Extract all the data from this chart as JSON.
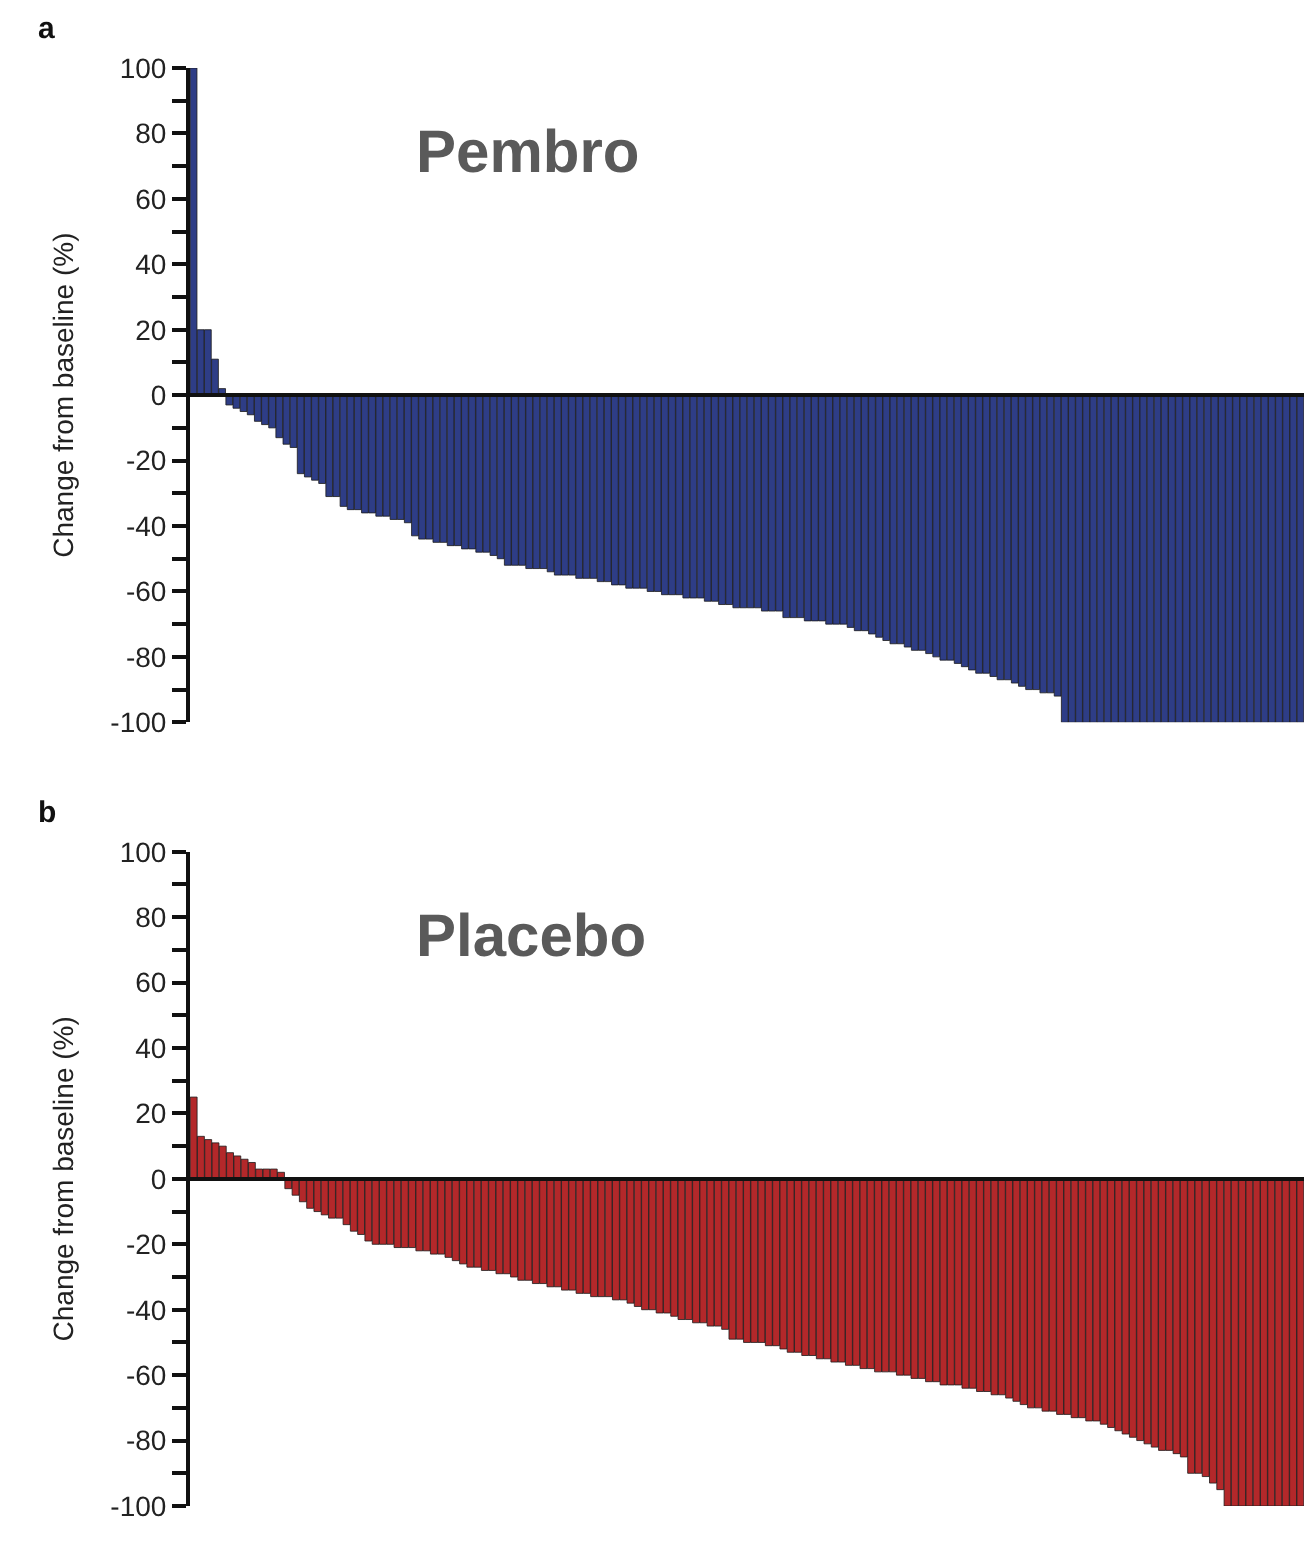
{
  "chart_data": [
    {
      "type": "bar",
      "title": "Pembro",
      "ylabel": "Change from baseline (%)",
      "annotations": [
        "a"
      ],
      "tick_labels": "y",
      "categories": [
        null,
        null,
        null,
        null,
        null,
        null,
        null,
        null,
        null,
        null,
        null,
        null,
        null,
        null,
        null,
        null,
        null,
        null,
        null,
        null,
        null,
        null,
        null,
        null,
        null,
        null,
        null,
        null,
        null,
        null,
        null,
        null,
        null,
        null,
        null,
        null,
        null,
        null,
        null,
        null,
        null,
        null,
        null,
        null,
        null,
        null,
        null,
        null,
        null,
        null,
        null,
        null,
        null,
        null,
        null,
        null,
        null,
        null,
        null,
        null,
        null,
        null,
        null,
        null,
        null,
        null,
        null,
        null,
        null,
        null,
        null,
        null,
        null,
        null,
        null,
        null,
        null,
        null,
        null,
        null,
        null,
        null,
        null,
        null,
        null,
        null,
        null,
        null,
        null,
        null,
        null,
        null,
        null,
        null,
        null,
        null,
        null,
        null,
        null,
        null,
        null,
        null,
        null,
        null,
        null,
        null,
        null,
        null,
        null,
        null,
        null,
        null,
        null,
        null,
        null,
        null,
        null,
        null,
        null,
        null,
        null,
        null,
        null,
        null,
        null,
        null,
        null,
        null,
        null,
        null,
        null,
        null,
        null,
        null,
        null,
        null,
        null,
        null,
        null,
        null,
        null,
        null,
        null,
        null,
        null,
        null,
        null,
        null,
        null,
        null,
        null,
        null,
        null,
        null,
        null,
        null
      ],
      "series": [
        {
          "color": "#2e3d86",
          "values": [
            100,
            20,
            20,
            11,
            2,
            -3,
            -4,
            -5,
            -6,
            -8,
            -9,
            -10,
            -13,
            -15,
            -16,
            -24,
            -25,
            -26,
            -27,
            -31,
            -31,
            -34,
            -35,
            -35,
            -36,
            -36,
            -37,
            -37,
            -38,
            -38,
            -39,
            -43,
            -44,
            -44,
            -45,
            -45,
            -46,
            -46,
            -47,
            -47,
            -48,
            -48,
            -49,
            -50,
            -52,
            -52,
            -52,
            -53,
            -53,
            -53,
            -54,
            -55,
            -55,
            -55,
            -56,
            -56,
            -56,
            -57,
            -57,
            -58,
            -58,
            -59,
            -59,
            -59,
            -60,
            -60,
            -61,
            -61,
            -61,
            -62,
            -62,
            -62,
            -63,
            -63,
            -64,
            -64,
            -65,
            -65,
            -65,
            -65,
            -66,
            -66,
            -66,
            -68,
            -68,
            -68,
            -69,
            -69,
            -69,
            -70,
            -70,
            -70,
            -71,
            -72,
            -72,
            -73,
            -74,
            -75,
            -76,
            -76,
            -77,
            -78,
            -78,
            -79,
            -80,
            -81,
            -81,
            -82,
            -83,
            -84,
            -85,
            -85,
            -86,
            -87,
            -87,
            -88,
            -89,
            -90,
            -90,
            -91,
            -91,
            -92,
            -100,
            -100,
            -100,
            -100,
            -100,
            -100,
            -100,
            -100,
            -100,
            -100,
            -100,
            -100,
            -100,
            -100,
            -100,
            -100,
            -100,
            -100,
            -100,
            -100,
            -100,
            -100,
            -100,
            -100,
            -100,
            -100,
            -100,
            -100,
            -100,
            -100,
            -100,
            -100,
            -100,
            -100
          ]
        }
      ],
      "ylim": [
        -100,
        100
      ],
      "yticks": [
        -100,
        {
          "value": -90,
          "label": null
        },
        -80,
        {
          "value": -70,
          "label": null
        },
        -60,
        {
          "value": -50,
          "label": null
        },
        -40,
        {
          "value": -30,
          "label": null
        },
        -20,
        {
          "value": -10,
          "label": null
        },
        0,
        {
          "value": 10,
          "label": null
        },
        20,
        {
          "value": 30,
          "label": null
        },
        40,
        {
          "value": 50,
          "label": null
        },
        60,
        {
          "value": 70,
          "label": null
        },
        80,
        {
          "value": 90,
          "label": null
        },
        100
      ]
    },
    {
      "type": "bar",
      "title": "Placebo",
      "ylabel": "Change from baseline (%)",
      "annotations": [
        "b"
      ],
      "tick_labels": "y",
      "categories": [
        null,
        null,
        null,
        null,
        null,
        null,
        null,
        null,
        null,
        null,
        null,
        null,
        null,
        null,
        null,
        null,
        null,
        null,
        null,
        null,
        null,
        null,
        null,
        null,
        null,
        null,
        null,
        null,
        null,
        null,
        null,
        null,
        null,
        null,
        null,
        null,
        null,
        null,
        null,
        null,
        null,
        null,
        null,
        null,
        null,
        null,
        null,
        null,
        null,
        null,
        null,
        null,
        null,
        null,
        null,
        null,
        null,
        null,
        null,
        null,
        null,
        null,
        null,
        null,
        null,
        null,
        null,
        null,
        null,
        null,
        null,
        null,
        null,
        null,
        null,
        null,
        null,
        null,
        null,
        null,
        null,
        null,
        null,
        null,
        null,
        null,
        null,
        null,
        null,
        null,
        null,
        null,
        null,
        null,
        null,
        null,
        null,
        null,
        null,
        null,
        null,
        null,
        null,
        null,
        null,
        null,
        null,
        null,
        null,
        null,
        null,
        null,
        null,
        null,
        null,
        null,
        null,
        null,
        null,
        null,
        null,
        null,
        null,
        null,
        null,
        null,
        null,
        null,
        null,
        null,
        null,
        null,
        null,
        null,
        null,
        null,
        null,
        null,
        null,
        null,
        null,
        null,
        null,
        null,
        null,
        null,
        null,
        null,
        null,
        null,
        null,
        null,
        null
      ],
      "series": [
        {
          "color": "#b3282a",
          "values": [
            25,
            13,
            12,
            11,
            10,
            8,
            7,
            6,
            5,
            3,
            3,
            3,
            2,
            -3,
            -5,
            -7,
            -9,
            -10,
            -11,
            -12,
            -12,
            -14,
            -16,
            -17,
            -19,
            -20,
            -20,
            -20,
            -21,
            -21,
            -21,
            -22,
            -22,
            -23,
            -23,
            -24,
            -25,
            -26,
            -27,
            -27,
            -28,
            -28,
            -29,
            -29,
            -30,
            -31,
            -31,
            -32,
            -32,
            -33,
            -33,
            -34,
            -34,
            -35,
            -35,
            -36,
            -36,
            -36,
            -37,
            -37,
            -38,
            -39,
            -40,
            -40,
            -41,
            -41,
            -42,
            -43,
            -43,
            -44,
            -44,
            -45,
            -45,
            -46,
            -49,
            -49,
            -50,
            -50,
            -50,
            -51,
            -51,
            -52,
            -53,
            -53,
            -54,
            -54,
            -55,
            -55,
            -56,
            -56,
            -57,
            -57,
            -58,
            -58,
            -59,
            -59,
            -59,
            -60,
            -60,
            -61,
            -61,
            -62,
            -62,
            -63,
            -63,
            -63,
            -64,
            -64,
            -65,
            -65,
            -66,
            -66,
            -67,
            -68,
            -69,
            -70,
            -70,
            -71,
            -71,
            -72,
            -72,
            -73,
            -73,
            -74,
            -74,
            -75,
            -76,
            -77,
            -78,
            -79,
            -80,
            -81,
            -82,
            -83,
            -83,
            -84,
            -85,
            -90,
            -90,
            -91,
            -93,
            -95,
            -100,
            -100,
            -100,
            -100,
            -100,
            -100,
            -100,
            -100,
            -100,
            -100,
            -100
          ]
        }
      ],
      "ylim": [
        -100,
        100
      ],
      "yticks": [
        -100,
        {
          "value": -90,
          "label": null
        },
        -80,
        {
          "value": -70,
          "label": null
        },
        -60,
        {
          "value": -50,
          "label": null
        },
        -40,
        {
          "value": -30,
          "label": null
        },
        -20,
        {
          "value": -10,
          "label": null
        },
        0,
        {
          "value": 10,
          "label": null
        },
        20,
        {
          "value": 30,
          "label": null
        },
        40,
        {
          "value": 50,
          "label": null
        },
        60,
        {
          "value": 70,
          "label": null
        },
        80,
        {
          "value": 90,
          "label": null
        },
        100
      ]
    }
  ]
}
